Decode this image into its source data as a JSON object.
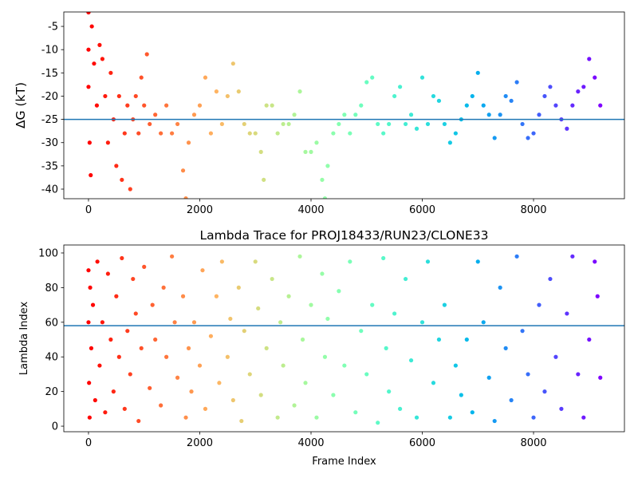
{
  "chart_data": [
    {
      "type": "scatter",
      "ylabel": "ΔG (kT)",
      "colormap": "rainbow_r",
      "xlim": [
        -444,
        9634
      ],
      "xticks": [
        0,
        2000,
        4000,
        6000,
        8000
      ],
      "ylim": [
        -42.06,
        -1.9
      ],
      "yticks": [
        -5,
        -10,
        -15,
        -20,
        -25,
        -30,
        -35,
        -40
      ],
      "hline": -25,
      "hline_color": "#1f77b4",
      "x": [
        0,
        0,
        0,
        20,
        40,
        60,
        100,
        150,
        200,
        250,
        300,
        350,
        400,
        450,
        500,
        550,
        600,
        650,
        700,
        750,
        800,
        850,
        900,
        950,
        1000,
        1050,
        1100,
        1200,
        1300,
        1400,
        1500,
        1600,
        1700,
        1750,
        1800,
        1900,
        2000,
        2100,
        2200,
        2300,
        2400,
        2500,
        2600,
        2700,
        2800,
        2900,
        3000,
        3100,
        3150,
        3200,
        3300,
        3400,
        3500,
        3600,
        3700,
        3800,
        3900,
        4000,
        4100,
        4200,
        4250,
        4300,
        4400,
        4500,
        4600,
        4700,
        4800,
        4900,
        5000,
        5100,
        5200,
        5300,
        5400,
        5500,
        5600,
        5700,
        5800,
        5900,
        6000,
        6100,
        6200,
        6300,
        6400,
        6500,
        6600,
        6700,
        6800,
        6900,
        7000,
        7100,
        7200,
        7300,
        7400,
        7500,
        7600,
        7700,
        7800,
        7900,
        8000,
        8100,
        8200,
        8300,
        8400,
        8500,
        8600,
        8700,
        8800,
        8900,
        9000,
        9100,
        9200
      ],
      "values": [
        -2,
        -10,
        -18,
        -30,
        -37,
        -5,
        -13,
        -22,
        -9,
        -12,
        -20,
        -30,
        -15,
        -25,
        -35,
        -20,
        -38,
        -28,
        -22,
        -40,
        -25,
        -20,
        -28,
        -16,
        -22,
        -11,
        -26,
        -24,
        -28,
        -22,
        -28,
        -26,
        -36,
        -42,
        -30,
        -24,
        -22,
        -16,
        -28,
        -19,
        -26,
        -20,
        -13,
        -19,
        -26,
        -28,
        -28,
        -32,
        -38,
        -22,
        -22,
        -28,
        -26,
        -26,
        -24,
        -19,
        -32,
        -32,
        -30,
        -38,
        -42,
        -35,
        -28,
        -26,
        -24,
        -28,
        -24,
        -22,
        -17,
        -16,
        -26,
        -28,
        -26,
        -20,
        -18,
        -26,
        -24,
        -27,
        -16,
        -26,
        -20,
        -21,
        -26,
        -30,
        -28,
        -25,
        -22,
        -20,
        -15,
        -22,
        -24,
        -29,
        -24,
        -20,
        -21,
        -17,
        -26,
        -29,
        -28,
        -24,
        -20,
        -18,
        -22,
        -25,
        -27,
        -22,
        -19,
        -18,
        -12,
        -16,
        -22
      ]
    },
    {
      "type": "scatter",
      "title": "Lambda Trace for PROJ18433/RUN23/CLONE33",
      "xlabel": "Frame Index",
      "ylabel": "Lambda Index",
      "colormap": "rainbow_r",
      "xlim": [
        -444,
        9634
      ],
      "xticks": [
        0,
        2000,
        4000,
        6000,
        8000
      ],
      "ylim": [
        -3.2,
        104.6
      ],
      "yticks": [
        0,
        20,
        40,
        60,
        80,
        100
      ],
      "hline": 58,
      "hline_color": "#1f77b4",
      "x": [
        0,
        0,
        10,
        20,
        30,
        50,
        80,
        120,
        160,
        200,
        250,
        300,
        350,
        400,
        450,
        500,
        550,
        600,
        650,
        700,
        750,
        800,
        850,
        900,
        950,
        1000,
        1100,
        1150,
        1200,
        1300,
        1350,
        1400,
        1500,
        1550,
        1600,
        1700,
        1750,
        1800,
        1850,
        1900,
        2000,
        2050,
        2100,
        2200,
        2300,
        2350,
        2400,
        2500,
        2550,
        2600,
        2700,
        2750,
        2800,
        2900,
        3000,
        3050,
        3100,
        3200,
        3300,
        3400,
        3450,
        3500,
        3600,
        3700,
        3800,
        3850,
        3900,
        4000,
        4100,
        4200,
        4250,
        4300,
        4400,
        4500,
        4600,
        4700,
        4800,
        4900,
        5000,
        5100,
        5200,
        5300,
        5350,
        5400,
        5500,
        5600,
        5700,
        5800,
        5900,
        6000,
        6100,
        6200,
        6300,
        6400,
        6500,
        6600,
        6700,
        6800,
        6900,
        7000,
        7100,
        7200,
        7300,
        7400,
        7500,
        7600,
        7700,
        7800,
        7900,
        8000,
        8100,
        8200,
        8300,
        8400,
        8500,
        8600,
        8700,
        8800,
        8900,
        9000,
        9100,
        9150,
        9200
      ],
      "values": [
        90,
        60,
        25,
        5,
        80,
        45,
        70,
        15,
        95,
        35,
        60,
        8,
        88,
        50,
        20,
        75,
        40,
        97,
        10,
        55,
        30,
        85,
        65,
        3,
        45,
        92,
        22,
        70,
        50,
        12,
        80,
        40,
        98,
        60,
        28,
        75,
        5,
        45,
        20,
        60,
        35,
        90,
        10,
        52,
        75,
        25,
        95,
        40,
        62,
        15,
        80,
        3,
        55,
        30,
        95,
        68,
        18,
        45,
        85,
        5,
        60,
        35,
        75,
        12,
        98,
        50,
        25,
        70,
        5,
        88,
        40,
        62,
        18,
        78,
        35,
        95,
        8,
        55,
        30,
        70,
        2,
        97,
        45,
        20,
        65,
        10,
        85,
        38,
        5,
        60,
        95,
        25,
        50,
        70,
        5,
        35,
        18,
        50,
        8,
        95,
        60,
        28,
        3,
        80,
        45,
        15,
        98,
        55,
        30,
        5,
        70,
        20,
        85,
        40,
        10,
        65,
        98,
        30,
        5,
        50,
        95,
        75,
        28
      ]
    }
  ]
}
